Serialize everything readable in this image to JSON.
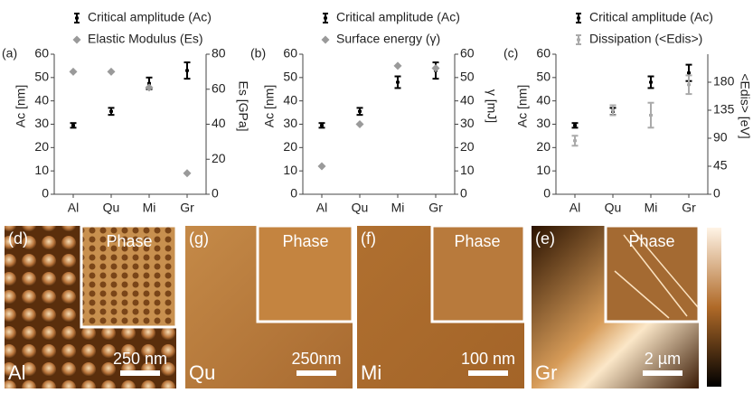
{
  "chart_data": [
    {
      "type": "errorbar",
      "panel_label": "(a)",
      "categories": [
        "Al",
        "Qu",
        "Mi",
        "Gr"
      ],
      "ylabel": "Ac [nm]",
      "y2label": "Es [GPa]",
      "ylim": [
        0,
        60
      ],
      "yticks": [
        0,
        10,
        20,
        30,
        40,
        50,
        60
      ],
      "y2lim": [
        0,
        80
      ],
      "y2ticks": [
        0,
        20,
        40,
        60,
        80
      ],
      "series": [
        {
          "name": "Critical amplitude (Ac)",
          "color": "#000000",
          "values": [
            29.5,
            35.5,
            47.5,
            53
          ],
          "errors": [
            1,
            1.5,
            2.5,
            3.5
          ]
        },
        {
          "name": "Elastic Modulus (Es)",
          "color": "#9a9a9a",
          "axis": "y2",
          "values": [
            70,
            70,
            61,
            12
          ]
        }
      ]
    },
    {
      "type": "errorbar",
      "panel_label": "(b)",
      "categories": [
        "Al",
        "Qu",
        "Mi",
        "Gr"
      ],
      "ylabel": "Ac [nm]",
      "y2label": "γ [mJ]",
      "ylim": [
        0,
        60
      ],
      "yticks": [
        0,
        10,
        20,
        30,
        40,
        50,
        60
      ],
      "y2lim": [
        0,
        60
      ],
      "y2ticks": [
        0,
        10,
        20,
        30,
        40,
        50,
        60
      ],
      "series": [
        {
          "name": "Critical amplitude (Ac)",
          "color": "#000000",
          "values": [
            29.5,
            35.5,
            48,
            53
          ],
          "errors": [
            1,
            1.5,
            2.5,
            3.5
          ]
        },
        {
          "name": "Surface energy (γ)",
          "color": "#9a9a9a",
          "axis": "y2",
          "values": [
            12,
            30,
            55,
            54
          ]
        }
      ]
    },
    {
      "type": "errorbar",
      "panel_label": "(c)",
      "categories": [
        "Al",
        "Qu",
        "Mi",
        "Gr"
      ],
      "ylabel": "Ac [nm]",
      "y2label": "<Edis> [eV]",
      "ylim": [
        0,
        60
      ],
      "yticks": [
        0,
        10,
        20,
        30,
        40,
        50,
        60
      ],
      "y2lim": [
        0,
        225
      ],
      "y2ticks": [
        0,
        45,
        90,
        135,
        180
      ],
      "series": [
        {
          "name": "Critical amplitude (Ac)",
          "color": "#000000",
          "values": [
            29.5,
            35.5,
            48,
            52
          ],
          "errors": [
            1,
            1.5,
            2.5,
            3.5
          ]
        },
        {
          "name": "Dissipation (<Edis>)",
          "color": "#aaaaaa",
          "axis": "y2",
          "values": [
            86,
            135,
            127,
            176
          ],
          "errors": [
            8,
            8,
            20,
            15
          ]
        }
      ]
    }
  ],
  "images": [
    {
      "label": "(d)",
      "inset": "Phase",
      "sample": "Al",
      "scale": "250 nm"
    },
    {
      "label": "(g)",
      "inset": "Phase",
      "sample": "Qu",
      "scale": "250nm"
    },
    {
      "label": "(f)",
      "inset": "Phase",
      "sample": "Mi",
      "scale": "100 nm"
    },
    {
      "label": "(e)",
      "inset": "Phase",
      "sample": "Gr",
      "scale": "2 µm"
    }
  ]
}
